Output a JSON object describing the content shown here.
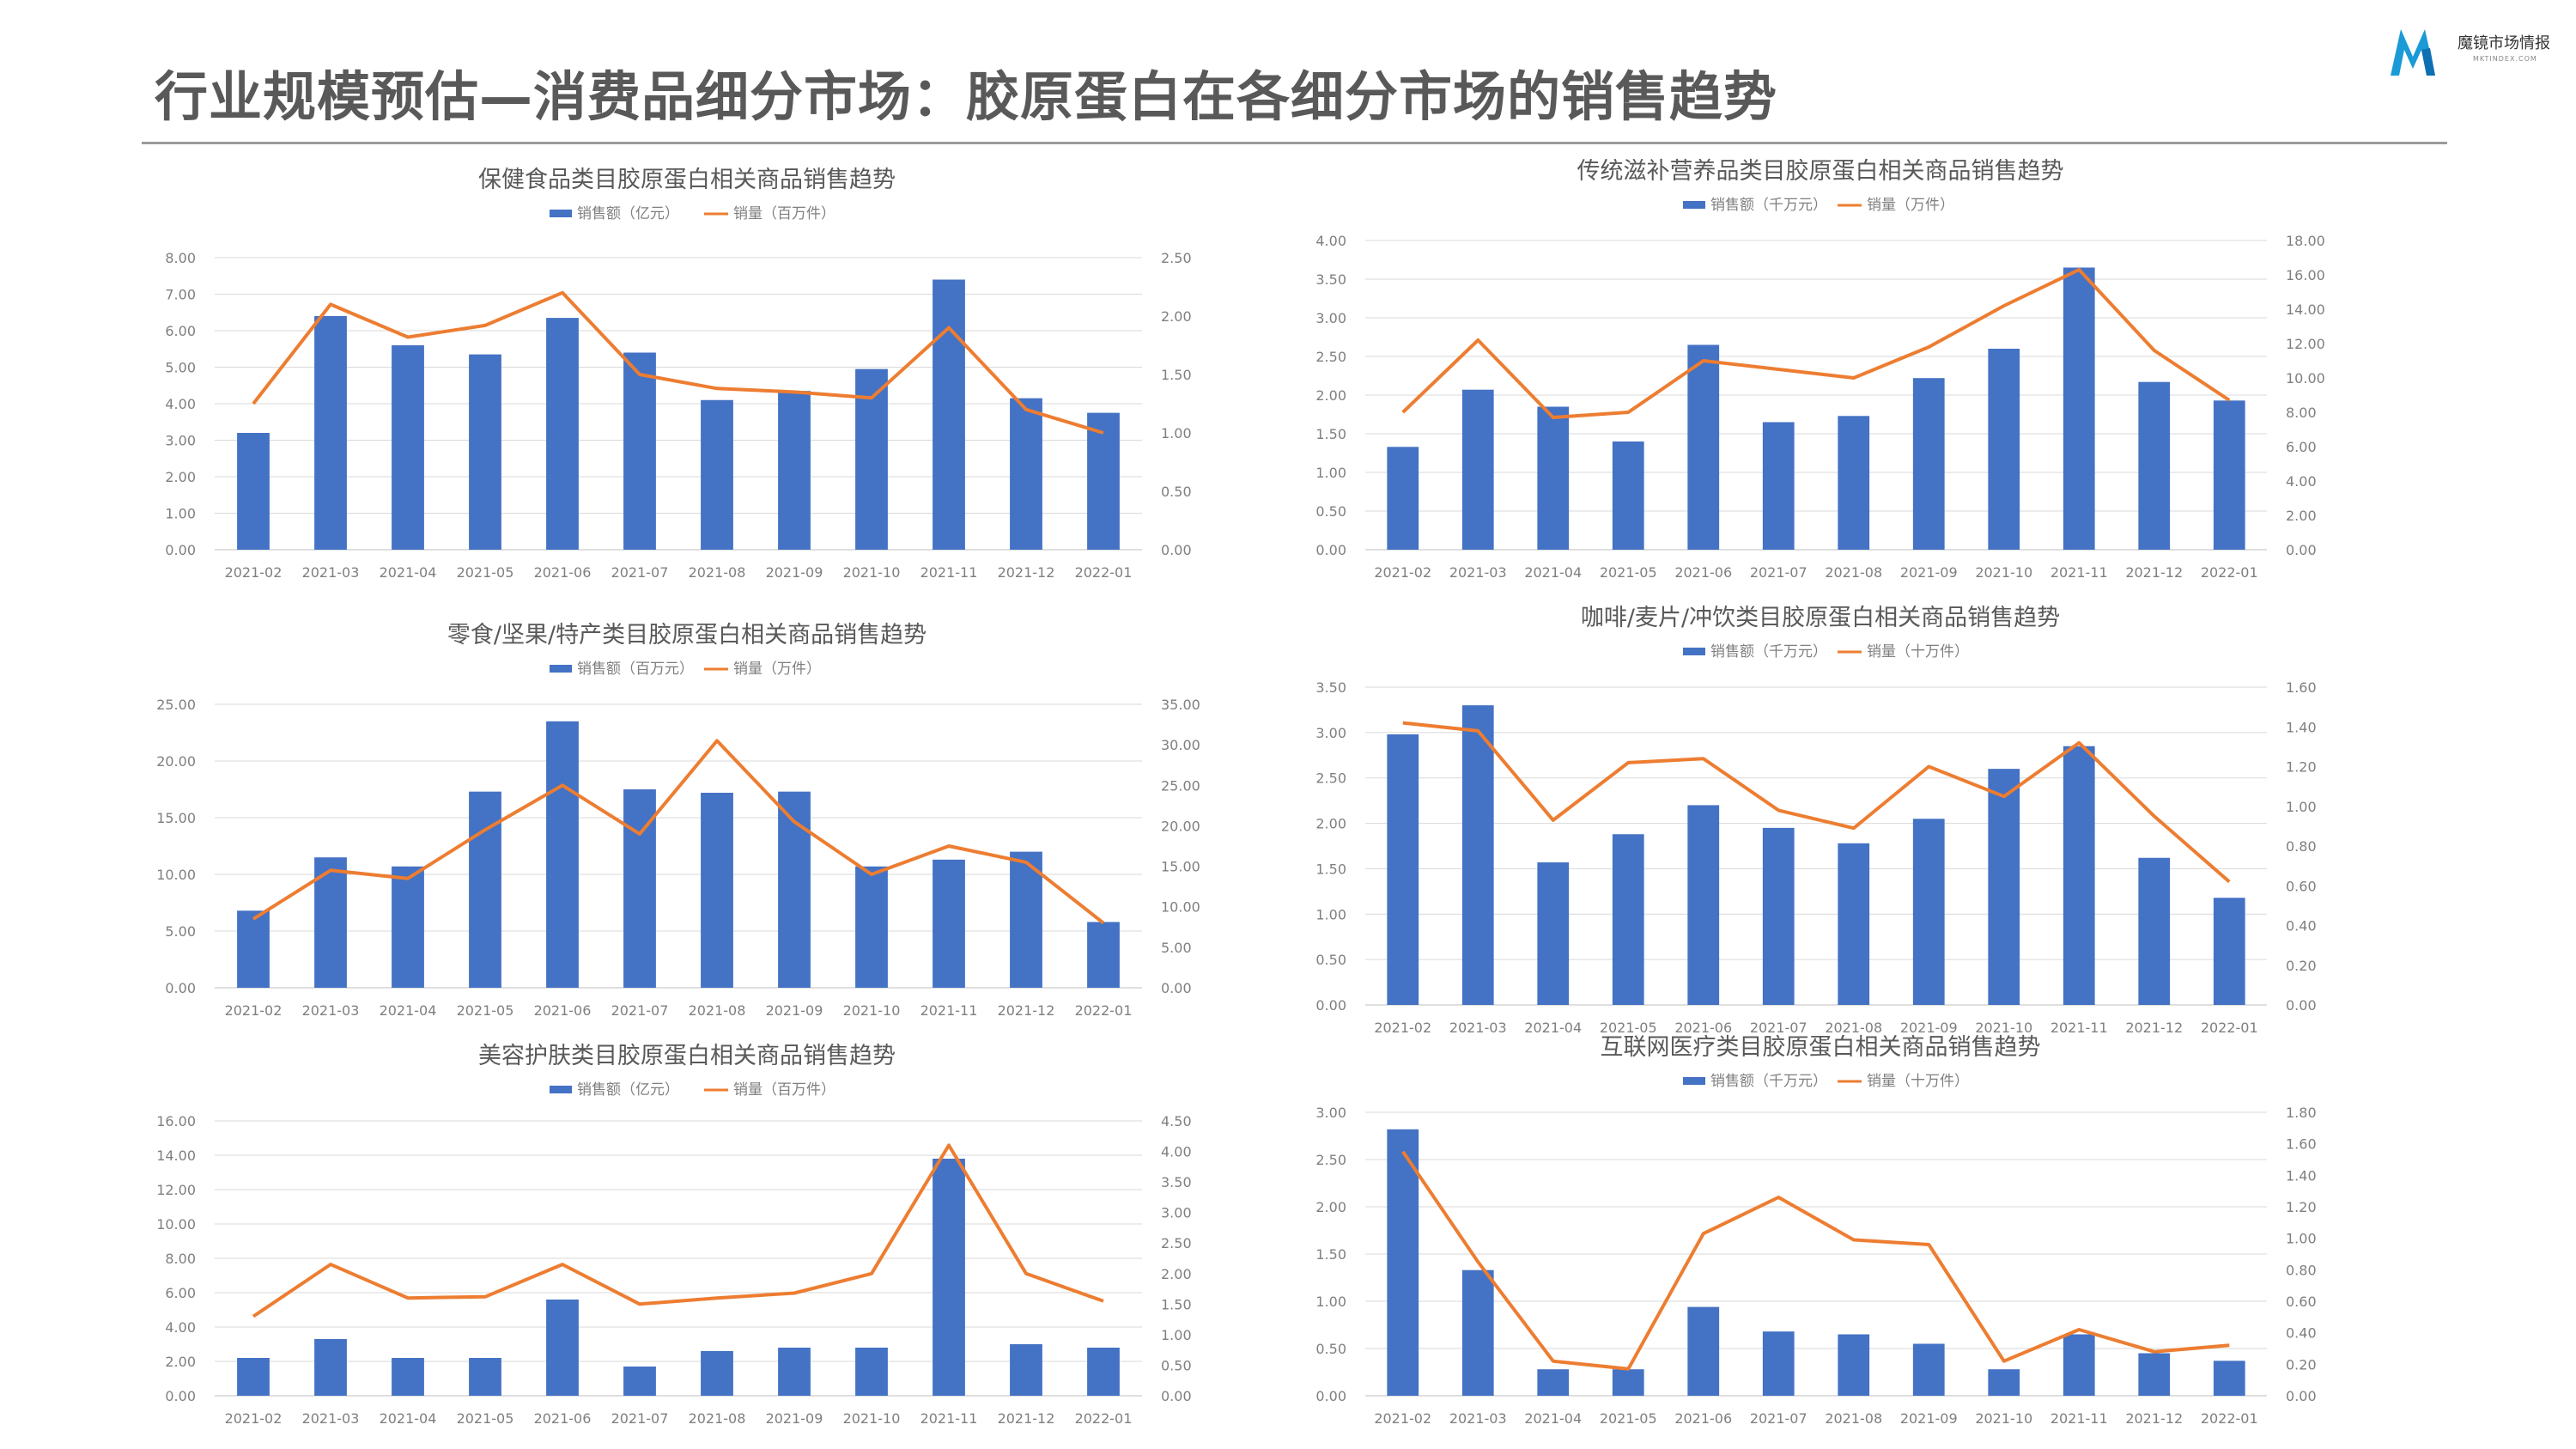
{
  "header": {
    "title": "行业规模预估—消费品细分市场：胶原蛋白在各细分市场的销售趋势",
    "logo_text": "魔镜市场情报",
    "logo_sub": "MKTINDEX.COM"
  },
  "colors": {
    "bar": "#4472C4",
    "line": "#ED7D31",
    "grid": "#d9d9d9",
    "axis_text": "#7f7f7f",
    "title_text": "#595959"
  },
  "chart_data": [
    {
      "type": "bar",
      "title": "保健食品类目胶原蛋白相关商品销售趋势",
      "categories": [
        "2021-02",
        "2021-03",
        "2021-04",
        "2021-05",
        "2021-06",
        "2021-07",
        "2021-08",
        "2021-09",
        "2021-10",
        "2021-11",
        "2021-12",
        "2022-01"
      ],
      "series": [
        {
          "name": "销售额（亿元）",
          "type": "bar",
          "axis": "left",
          "values": [
            3.2,
            6.4,
            5.6,
            5.35,
            6.35,
            5.4,
            4.1,
            4.35,
            4.95,
            7.4,
            4.15,
            3.75
          ]
        },
        {
          "name": "销量（百万件）",
          "type": "line",
          "axis": "right",
          "values": [
            1.25,
            2.1,
            1.82,
            1.92,
            2.2,
            1.5,
            1.38,
            1.35,
            1.3,
            1.9,
            1.2,
            1.0
          ]
        }
      ],
      "ylim": [
        0,
        8
      ],
      "ylim_right": [
        0,
        2.5
      ],
      "yticks": [
        "0.00",
        "1.00",
        "2.00",
        "3.00",
        "4.00",
        "5.00",
        "6.00",
        "7.00",
        "8.00"
      ],
      "yticks_right": [
        "0.00",
        "0.50",
        "1.00",
        "1.50",
        "2.00",
        "2.50"
      ],
      "legend": "top"
    },
    {
      "type": "bar",
      "title": "传统滋补营养品类目胶原蛋白相关商品销售趋势",
      "categories": [
        "2021-02",
        "2021-03",
        "2021-04",
        "2021-05",
        "2021-06",
        "2021-07",
        "2021-08",
        "2021-09",
        "2021-10",
        "2021-11",
        "2021-12",
        "2022-01"
      ],
      "series": [
        {
          "name": "销售额（千万元）",
          "type": "bar",
          "axis": "left",
          "values": [
            1.33,
            2.07,
            1.85,
            1.4,
            2.65,
            1.65,
            1.73,
            2.22,
            2.6,
            3.65,
            2.17,
            1.93
          ]
        },
        {
          "name": "销量（万件）",
          "type": "line",
          "axis": "right",
          "values": [
            8.0,
            12.2,
            7.7,
            8.0,
            11.0,
            10.5,
            10.0,
            11.8,
            14.2,
            16.3,
            11.6,
            8.7
          ]
        }
      ],
      "ylim": [
        0,
        4
      ],
      "ylim_right": [
        0,
        18
      ],
      "yticks": [
        "0.00",
        "0.50",
        "1.00",
        "1.50",
        "2.00",
        "2.50",
        "3.00",
        "3.50",
        "4.00"
      ],
      "yticks_right": [
        "0.00",
        "2.00",
        "4.00",
        "6.00",
        "8.00",
        "10.00",
        "12.00",
        "14.00",
        "16.00",
        "18.00"
      ],
      "legend": "top"
    },
    {
      "type": "bar",
      "title": "零食/坚果/特产类目胶原蛋白相关商品销售趋势",
      "categories": [
        "2021-02",
        "2021-03",
        "2021-04",
        "2021-05",
        "2021-06",
        "2021-07",
        "2021-08",
        "2021-09",
        "2021-10",
        "2021-11",
        "2021-12",
        "2022-01"
      ],
      "series": [
        {
          "name": "销售额（百万元）",
          "type": "bar",
          "axis": "left",
          "values": [
            6.8,
            11.5,
            10.7,
            17.3,
            23.5,
            17.5,
            17.2,
            17.3,
            10.7,
            11.3,
            12.0,
            5.8
          ]
        },
        {
          "name": "销量（万件）",
          "type": "line",
          "axis": "right",
          "values": [
            8.5,
            14.5,
            13.5,
            19.5,
            25.0,
            19.0,
            30.5,
            20.5,
            14.0,
            17.5,
            15.5,
            8.0
          ]
        }
      ],
      "ylim": [
        0,
        25
      ],
      "ylim_right": [
        0,
        35
      ],
      "yticks": [
        "0.00",
        "5.00",
        "10.00",
        "15.00",
        "20.00",
        "25.00"
      ],
      "yticks_right": [
        "0.00",
        "5.00",
        "10.00",
        "15.00",
        "20.00",
        "25.00",
        "30.00",
        "35.00"
      ],
      "legend": "top"
    },
    {
      "type": "bar",
      "title": "咖啡/麦片/冲饮类目胶原蛋白相关商品销售趋势",
      "categories": [
        "2021-02",
        "2021-03",
        "2021-04",
        "2021-05",
        "2021-06",
        "2021-07",
        "2021-08",
        "2021-09",
        "2021-10",
        "2021-11",
        "2021-12",
        "2022-01"
      ],
      "series": [
        {
          "name": "销售额（千万元）",
          "type": "bar",
          "axis": "left",
          "values": [
            2.98,
            3.3,
            1.57,
            1.88,
            2.2,
            1.95,
            1.78,
            2.05,
            2.6,
            2.85,
            1.62,
            1.18
          ]
        },
        {
          "name": "销量（十万件）",
          "type": "line",
          "axis": "right",
          "values": [
            1.42,
            1.38,
            0.93,
            1.22,
            1.24,
            0.98,
            0.89,
            1.2,
            1.05,
            1.32,
            0.95,
            0.62
          ]
        }
      ],
      "ylim": [
        0,
        3.5
      ],
      "ylim_right": [
        0,
        1.6
      ],
      "yticks": [
        "0.00",
        "0.50",
        "1.00",
        "1.50",
        "2.00",
        "2.50",
        "3.00",
        "3.50"
      ],
      "yticks_right": [
        "0.00",
        "0.20",
        "0.40",
        "0.60",
        "0.80",
        "1.00",
        "1.20",
        "1.40",
        "1.60"
      ],
      "legend": "top"
    },
    {
      "type": "bar",
      "title": "美容护肤类目胶原蛋白相关商品销售趋势",
      "categories": [
        "2021-02",
        "2021-03",
        "2021-04",
        "2021-05",
        "2021-06",
        "2021-07",
        "2021-08",
        "2021-09",
        "2021-10",
        "2021-11",
        "2021-12",
        "2022-01"
      ],
      "series": [
        {
          "name": "销售额（亿元）",
          "type": "bar",
          "axis": "left",
          "values": [
            2.2,
            3.3,
            2.2,
            2.2,
            5.6,
            1.7,
            2.6,
            2.8,
            2.8,
            13.8,
            3.0,
            2.8
          ]
        },
        {
          "name": "销量（百万件）",
          "type": "line",
          "axis": "right",
          "values": [
            1.3,
            2.15,
            1.6,
            1.62,
            2.15,
            1.5,
            1.6,
            1.68,
            2.0,
            4.1,
            2.0,
            1.55
          ]
        }
      ],
      "ylim": [
        0,
        16
      ],
      "ylim_right": [
        0,
        4.5
      ],
      "yticks": [
        "0.00",
        "2.00",
        "4.00",
        "6.00",
        "8.00",
        "10.00",
        "12.00",
        "14.00",
        "16.00"
      ],
      "yticks_right": [
        "0.00",
        "0.50",
        "1.00",
        "1.50",
        "2.00",
        "2.50",
        "3.00",
        "3.50",
        "4.00",
        "4.50"
      ],
      "legend": "top"
    },
    {
      "type": "bar",
      "title": "互联网医疗类目胶原蛋白相关商品销售趋势",
      "categories": [
        "2021-02",
        "2021-03",
        "2021-04",
        "2021-05",
        "2021-06",
        "2021-07",
        "2021-08",
        "2021-09",
        "2021-10",
        "2021-11",
        "2021-12",
        "2022-01"
      ],
      "series": [
        {
          "name": "销售额（千万元）",
          "type": "bar",
          "axis": "left",
          "values": [
            2.82,
            1.33,
            0.28,
            0.28,
            0.94,
            0.68,
            0.65,
            0.55,
            0.28,
            0.65,
            0.45,
            0.37
          ]
        },
        {
          "name": "销量（十万件）",
          "type": "line",
          "axis": "right",
          "values": [
            1.55,
            0.85,
            0.22,
            0.17,
            1.03,
            1.26,
            0.99,
            0.96,
            0.22,
            0.42,
            0.28,
            0.32
          ]
        }
      ],
      "ylim": [
        0,
        3
      ],
      "ylim_right": [
        0,
        1.8
      ],
      "yticks": [
        "0.00",
        "0.50",
        "1.00",
        "1.50",
        "2.00",
        "2.50",
        "3.00"
      ],
      "yticks_right": [
        "0.00",
        "0.20",
        "0.40",
        "0.60",
        "0.80",
        "1.00",
        "1.20",
        "1.40",
        "1.60",
        "1.80"
      ],
      "legend": "top"
    }
  ]
}
